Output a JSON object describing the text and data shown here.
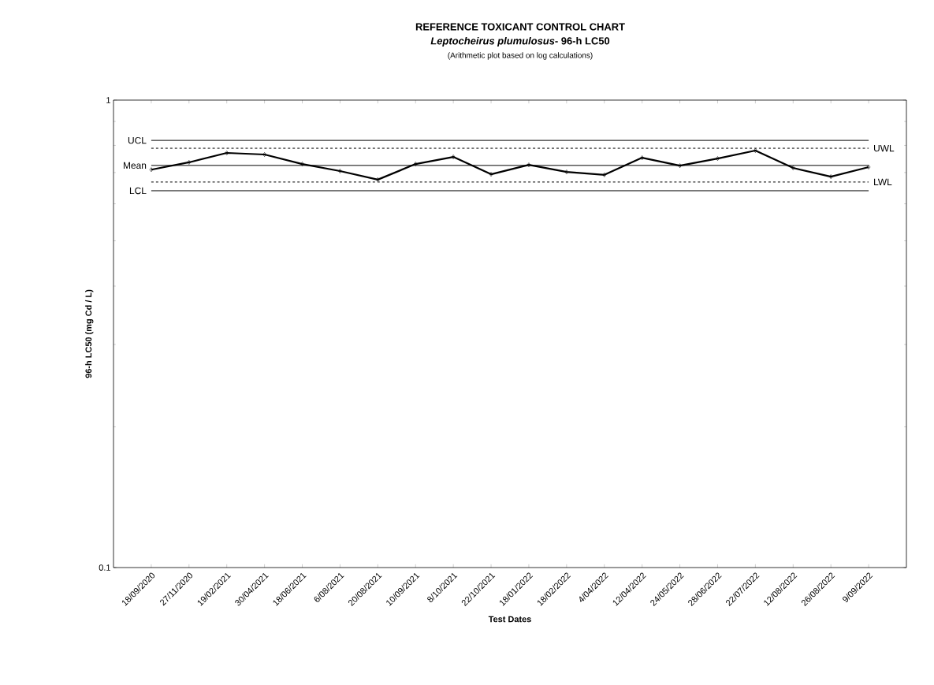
{
  "chart_data": {
    "type": "line",
    "title": "REFERENCE TOXICANT CONTROL CHART",
    "subtitle": "*Leptocheirus plumulosus*- 96-h LC50",
    "annotations": [
      "(Arithmetic plot based on log calculations)"
    ],
    "xlabel": "Test Dates",
    "ylabel": "96-h LC50 (mg Cd / L)",
    "categories": [
      "18/09/2020",
      "27/11/2020",
      "19/02/2021",
      "30/04/2021",
      "18/06/2021",
      "6/08/2021",
      "20/08/2021",
      "10/09/2021",
      "8/10/2021",
      "22/10/2021",
      "18/01/2022",
      "18/02/2022",
      "4/04/2022",
      "12/04/2022",
      "24/05/2022",
      "28/06/2022",
      "22/07/2022",
      "12/08/2022",
      "26/08/2022",
      "9/09/2022"
    ],
    "series": [
      {
        "color": "#000000",
        "values": [
          0.71,
          0.736,
          0.771,
          0.765,
          0.73,
          0.705,
          0.676,
          0.73,
          0.756,
          0.694,
          0.727,
          0.702,
          0.692,
          0.753,
          0.724,
          0.75,
          0.78,
          0.716,
          0.686,
          0.719
        ]
      }
    ],
    "marker": "diamond",
    "line_style": "solid",
    "log": "y",
    "ylim": [
      0.1,
      1
    ],
    "yticks": [
      0.1,
      1
    ],
    "grid": false,
    "ref_lines": [
      {
        "axis": "y",
        "value": 0.82,
        "label": "UCL",
        "line_style": "solid",
        "color": "#000000"
      },
      {
        "axis": "y",
        "value": 0.789,
        "label": "UWL",
        "line_style": "dashed",
        "color": "#000000"
      },
      {
        "axis": "y",
        "value": 0.725,
        "label": "Mean",
        "line_style": "solid",
        "color": "#000000"
      },
      {
        "axis": "y",
        "value": 0.668,
        "label": "LWL",
        "line_style": "dashed",
        "color": "#000000"
      },
      {
        "axis": "y",
        "value": 0.64,
        "label": "LCL",
        "line_style": "solid",
        "color": "#000000"
      }
    ]
  }
}
